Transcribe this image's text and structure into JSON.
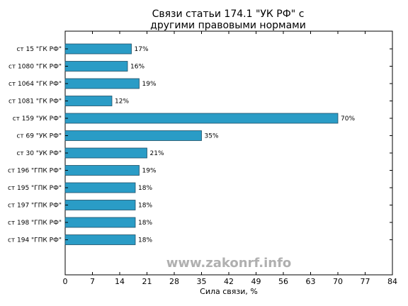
{
  "watermark": "www.zakonrf.info",
  "colors": {
    "bar_fill": "#2a9cc6",
    "bar_edge": "#1f4f66"
  },
  "chart_data": {
    "type": "bar",
    "orientation": "horizontal",
    "title": "Связи статьи 174.1 \"УК РФ\" с\nдругими правовыми нормами",
    "title_lines": [
      "Связи статьи 174.1 \"УК РФ\" с",
      "другими правовыми нормами"
    ],
    "xlabel": "Сила связи, %",
    "ylabel": "",
    "xlim": [
      0,
      84
    ],
    "xticks": [
      0,
      7,
      14,
      21,
      28,
      35,
      42,
      49,
      56,
      63,
      70,
      77,
      84
    ],
    "grid": false,
    "categories": [
      "ст 15 \"ГК РФ\"",
      "ст 1080 \"ГК РФ\"",
      "ст 1064 \"ГК РФ\"",
      "ст 1081 \"ГК РФ\"",
      "ст 159 \"УК РФ\"",
      "ст 69 \"УК РФ\"",
      "ст 30 \"УК РФ\"",
      "ст 196 \"ГПК РФ\"",
      "ст 195 \"ГПК РФ\"",
      "ст 197 \"ГПК РФ\"",
      "ст 198 \"ГПК РФ\"",
      "ст 194 \"ГПК РФ\""
    ],
    "values": [
      17,
      16,
      19,
      12,
      70,
      35,
      21,
      19,
      18,
      18,
      18,
      18
    ],
    "value_labels": [
      "17%",
      "16%",
      "19%",
      "12%",
      "70%",
      "35%",
      "21%",
      "19%",
      "18%",
      "18%",
      "18%",
      "18%"
    ]
  }
}
